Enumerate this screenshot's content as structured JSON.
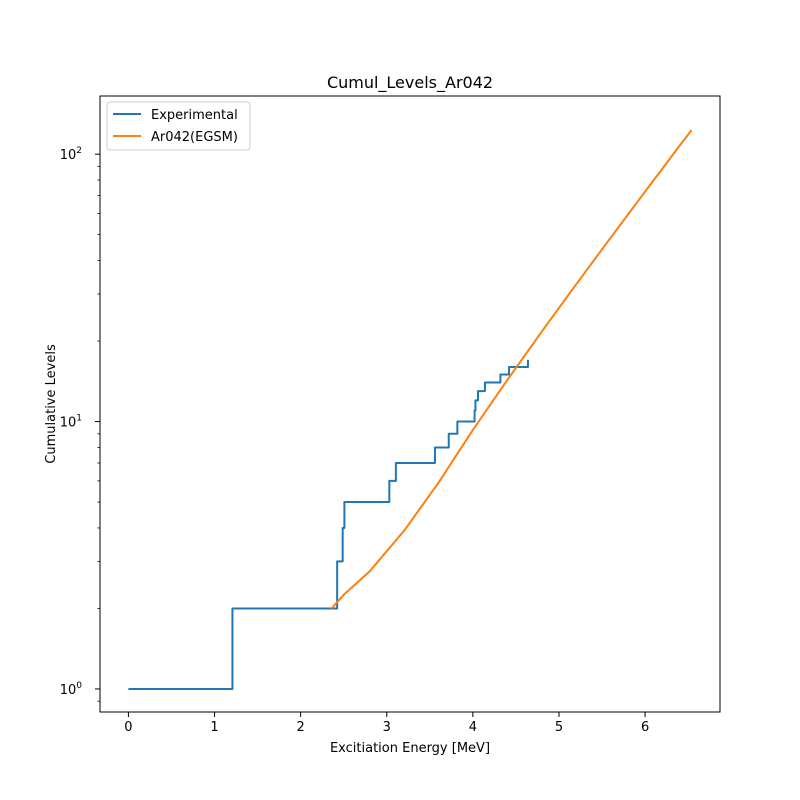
{
  "chart_data": {
    "type": "line",
    "title": "Cumul_Levels_Ar042",
    "xlabel": "Excitiation Energy [MeV]",
    "ylabel": "Cumulative Levels",
    "xlim": [
      -0.33,
      6.87
    ],
    "ylim": [
      0.82,
      165
    ],
    "yscale": "log",
    "x_ticks": [
      0,
      1,
      2,
      3,
      4,
      5,
      6
    ],
    "x_tick_labels": [
      "0",
      "1",
      "2",
      "3",
      "4",
      "5",
      "6"
    ],
    "y_ticks": [
      1,
      10,
      100
    ],
    "y_tick_labels": [
      "10",
      "10",
      "10"
    ],
    "y_tick_exponents": [
      "0",
      "1",
      "2"
    ],
    "grid": false,
    "legend_position": "upper-left",
    "colors": {
      "experimental": "#1f77b4",
      "egsm": "#ff7f0e"
    },
    "series": [
      {
        "name": "Experimental",
        "style": "step",
        "x": [
          0.0,
          1.208,
          2.424,
          2.488,
          2.508,
          3.03,
          3.106,
          3.56,
          3.72,
          3.82,
          4.02,
          4.03,
          4.06,
          4.14,
          4.32,
          4.42,
          4.64
        ],
        "y": [
          1,
          2,
          3,
          4,
          5,
          6,
          7,
          8,
          9,
          10,
          11,
          12,
          13,
          14,
          15,
          16,
          17
        ]
      },
      {
        "name": "Ar042(EGSM)",
        "style": "line",
        "x": [
          2.36,
          2.5,
          2.8,
          3.2,
          3.6,
          4.0,
          4.4,
          4.8,
          5.2,
          5.6,
          6.0,
          6.2,
          6.4,
          6.54
        ],
        "y": [
          2.0,
          2.25,
          2.75,
          3.9,
          5.9,
          9.3,
          14.3,
          21.7,
          32.6,
          48.7,
          72.4,
          88.2,
          107.5,
          123
        ]
      }
    ]
  }
}
